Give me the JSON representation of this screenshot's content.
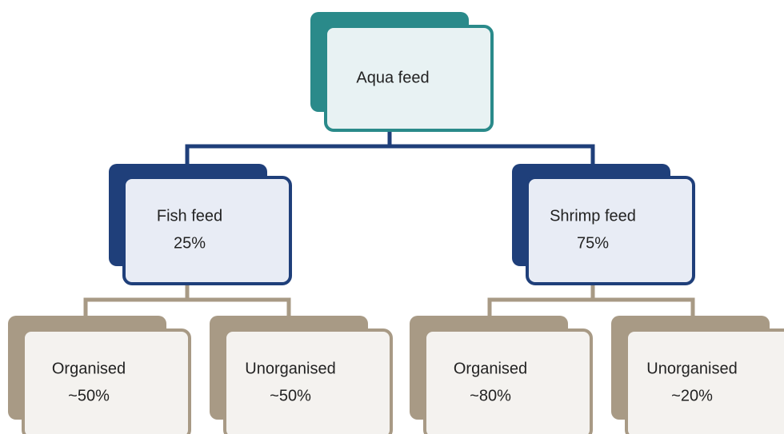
{
  "nodes": [
    {
      "label": "Aqua feed"
    },
    {
      "label": "Fish feed",
      "share": "25%"
    },
    {
      "label": "Shrimp feed",
      "share": "75%"
    },
    {
      "label": "Organised",
      "share": "~50%"
    },
    {
      "label": "Unorganised",
      "share": "~50%"
    },
    {
      "label": "Organised",
      "share": "~80%"
    },
    {
      "label": "Unorganised",
      "share": "~20%"
    }
  ]
}
